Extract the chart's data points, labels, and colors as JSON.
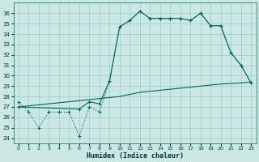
{
  "xlabel": "Humidex (Indice chaleur)",
  "background_color": "#cce8e4",
  "grid_color": "#99cccc",
  "line_color": "#006655",
  "xlim": [
    -0.5,
    23.5
  ],
  "ylim": [
    23.5,
    37.0
  ],
  "yticks": [
    24,
    25,
    26,
    27,
    28,
    29,
    30,
    31,
    32,
    33,
    34,
    35,
    36
  ],
  "xticks": [
    0,
    1,
    2,
    3,
    4,
    5,
    6,
    7,
    8,
    9,
    10,
    11,
    12,
    13,
    14,
    15,
    16,
    17,
    18,
    19,
    20,
    21,
    22,
    23
  ],
  "series1_x": [
    0,
    1,
    2,
    3,
    4,
    5,
    6,
    7,
    8,
    9,
    10,
    11,
    12,
    13,
    14,
    15,
    16,
    17,
    18,
    19,
    20,
    21,
    22,
    23
  ],
  "series1_y": [
    27.5,
    26.5,
    25.0,
    26.5,
    26.5,
    26.5,
    24.2,
    27.0,
    26.5,
    29.5,
    34.7,
    35.3,
    36.2,
    35.5,
    35.5,
    35.5,
    35.5,
    35.3,
    36.0,
    34.8,
    34.8,
    32.2,
    31.0,
    29.3
  ],
  "series2_x": [
    0,
    6,
    7,
    8,
    9,
    10,
    11,
    12,
    13,
    14,
    15,
    16,
    17,
    18,
    19,
    20,
    21,
    22,
    23
  ],
  "series2_y": [
    27.0,
    26.8,
    27.5,
    27.3,
    29.5,
    34.7,
    35.3,
    36.2,
    35.5,
    35.5,
    35.5,
    35.5,
    35.3,
    36.0,
    34.8,
    34.8,
    32.2,
    31.0,
    29.3
  ],
  "series3_x": [
    0,
    1,
    2,
    3,
    4,
    5,
    6,
    7,
    8,
    9,
    10,
    11,
    12,
    13,
    14,
    15,
    16,
    17,
    18,
    19,
    20,
    21,
    22,
    23
  ],
  "series3_y": [
    27.0,
    27.1,
    27.2,
    27.3,
    27.4,
    27.5,
    27.6,
    27.7,
    27.8,
    27.9,
    28.0,
    28.2,
    28.4,
    28.5,
    28.6,
    28.7,
    28.8,
    28.9,
    29.0,
    29.1,
    29.2,
    29.25,
    29.3,
    29.4
  ]
}
